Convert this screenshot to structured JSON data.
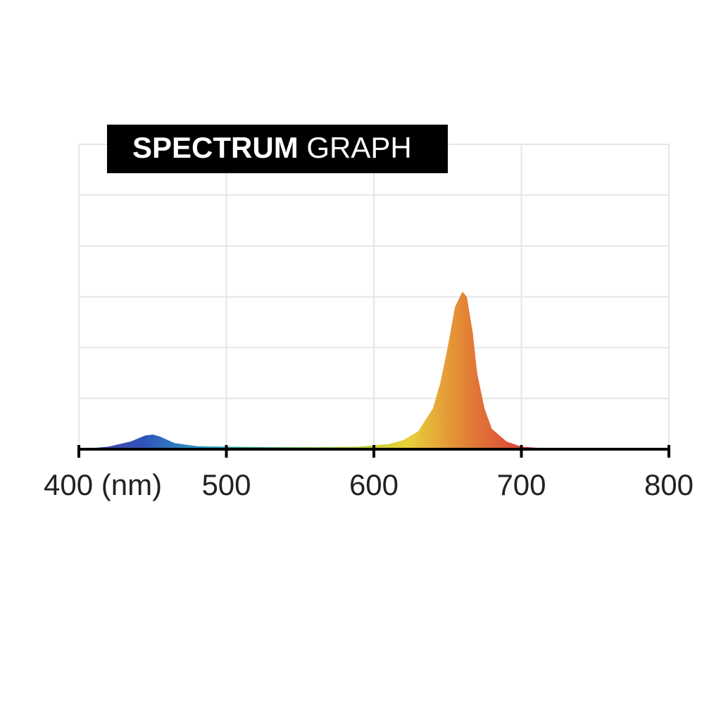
{
  "chart_data": {
    "type": "area",
    "title": "SPECTRUM",
    "title_suffix": "GRAPH",
    "x": [
      400,
      420,
      435,
      445,
      450,
      455,
      465,
      480,
      500,
      530,
      560,
      590,
      610,
      620,
      630,
      640,
      645,
      650,
      655,
      660,
      663,
      667,
      670,
      675,
      680,
      690,
      700,
      720,
      750,
      800
    ],
    "y": [
      0,
      0.05,
      0.15,
      0.27,
      0.29,
      0.25,
      0.12,
      0.06,
      0.05,
      0.04,
      0.04,
      0.05,
      0.1,
      0.18,
      0.35,
      0.8,
      1.3,
      2.0,
      2.8,
      3.1,
      3.0,
      2.3,
      1.5,
      0.8,
      0.4,
      0.15,
      0.05,
      0.01,
      0,
      0
    ],
    "colors": [
      "#4b3c9c",
      "#2f55b8",
      "#2aa6c8",
      "#3aa45a",
      "#a9c83a",
      "#e8d23a",
      "#e27a36",
      "#d9343a",
      "#c62b33",
      "#b4282f"
    ],
    "xlim": [
      400,
      800
    ],
    "xticks": [
      {
        "value": 400,
        "label": "400 (nm)"
      },
      500,
      600,
      700,
      800
    ],
    "ylim": [
      0,
      6
    ],
    "yticks": [
      0,
      1,
      2,
      3,
      4,
      5,
      6
    ],
    "grid": true
  }
}
